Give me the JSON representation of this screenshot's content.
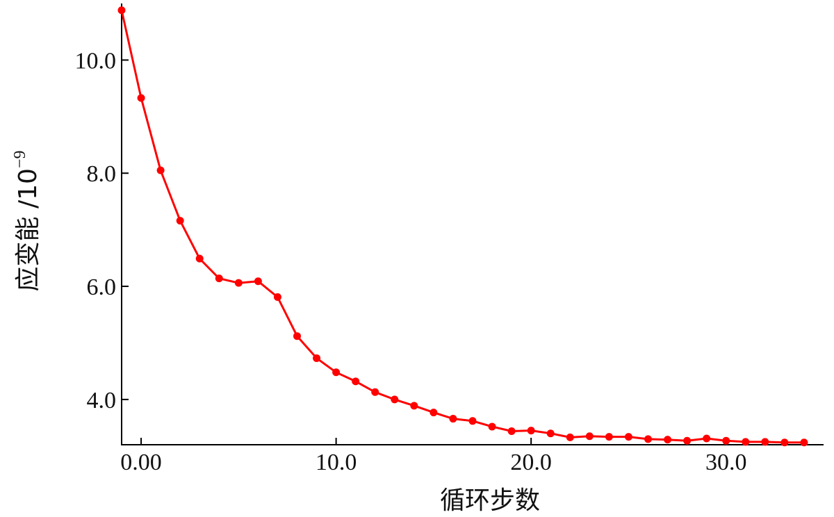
{
  "chart_data": {
    "type": "line",
    "xlabel": "循环步数",
    "ylabel": "应变能 /10",
    "ylabel_exponent": "−9",
    "x_tick_labels": [
      "0.00",
      "10.0",
      "20.0",
      "30.0"
    ],
    "x_ticks": [
      0,
      10,
      20,
      30
    ],
    "y_tick_labels": [
      "4.0",
      "6.0",
      "8.0",
      "10.0"
    ],
    "y_ticks": [
      4,
      6,
      8,
      10
    ],
    "xlim": [
      -1,
      35
    ],
    "ylim": [
      3.2,
      11.0
    ],
    "grid": false,
    "series": [
      {
        "color": "#ff0000",
        "x": [
          -1,
          0,
          1,
          2,
          3,
          4,
          5,
          6,
          7,
          8,
          9,
          10,
          11,
          12,
          13,
          14,
          15,
          16,
          17,
          18,
          19,
          20,
          21,
          22,
          23,
          24,
          25,
          26,
          27,
          28,
          29,
          30,
          31,
          32,
          33,
          34
        ],
        "y": [
          10.88,
          9.33,
          8.05,
          7.16,
          6.49,
          6.14,
          6.06,
          6.09,
          5.81,
          5.12,
          4.73,
          4.48,
          4.32,
          4.13,
          4.0,
          3.89,
          3.77,
          3.66,
          3.62,
          3.52,
          3.44,
          3.45,
          3.4,
          3.33,
          3.35,
          3.34,
          3.34,
          3.3,
          3.29,
          3.27,
          3.31,
          3.27,
          3.25,
          3.25,
          3.24,
          3.24
        ]
      }
    ]
  }
}
